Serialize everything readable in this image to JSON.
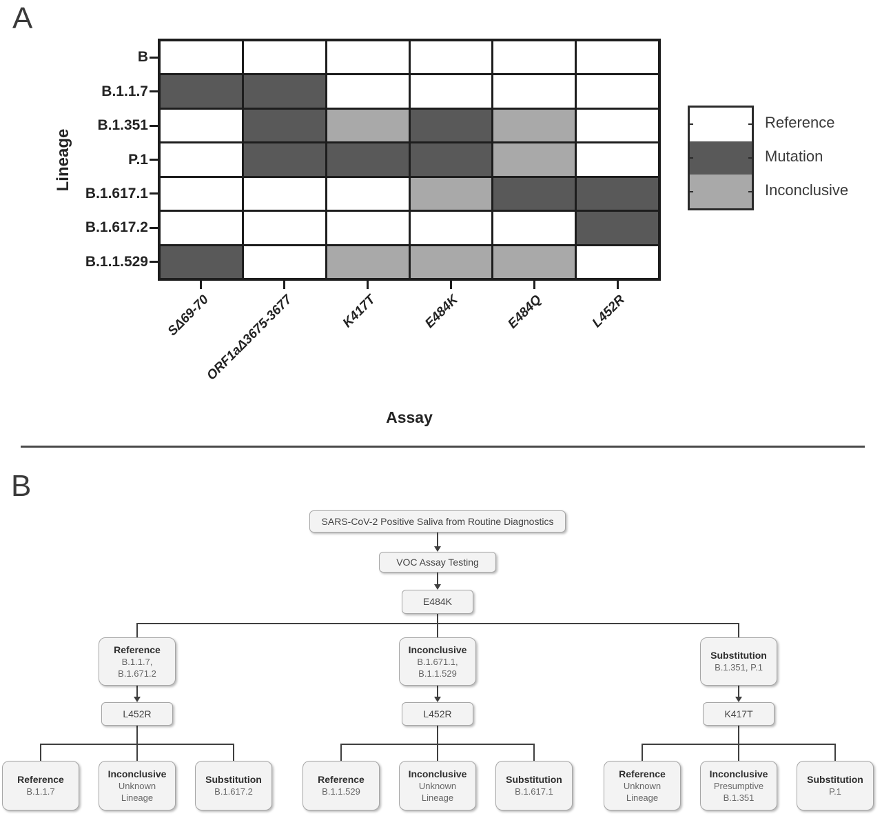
{
  "panelA": {
    "label": "A",
    "ylabel": "Lineage",
    "xlabel": "Assay"
  },
  "chart_data": {
    "type": "heatmap",
    "title": "",
    "xlabel": "Assay",
    "ylabel": "Lineage",
    "rows": [
      "B",
      "B.1.1.7",
      "B.1.351",
      "P.1",
      "B.1.617.1",
      "B.1.617.2",
      "B.1.1.529"
    ],
    "columns": [
      "SΔ69-70",
      "ORF1aΔ3675-3677",
      "K417T",
      "E484K",
      "E484Q",
      "L452R"
    ],
    "cells": [
      [
        "reference",
        "reference",
        "reference",
        "reference",
        "reference",
        "reference"
      ],
      [
        "mutation",
        "mutation",
        "reference",
        "reference",
        "reference",
        "reference"
      ],
      [
        "reference",
        "mutation",
        "inconclusive",
        "mutation",
        "inconclusive",
        "reference"
      ],
      [
        "reference",
        "mutation",
        "mutation",
        "mutation",
        "inconclusive",
        "reference"
      ],
      [
        "reference",
        "reference",
        "reference",
        "inconclusive",
        "mutation",
        "mutation"
      ],
      [
        "reference",
        "reference",
        "reference",
        "reference",
        "reference",
        "mutation"
      ],
      [
        "mutation",
        "reference",
        "inconclusive",
        "inconclusive",
        "inconclusive",
        "reference"
      ]
    ],
    "legend": [
      {
        "label": "Reference",
        "value": "reference",
        "color": "#ffffff"
      },
      {
        "label": "Mutation",
        "value": "mutation",
        "color": "#595959"
      },
      {
        "label": "Inconclusive",
        "value": "inconclusive",
        "color": "#a9a9a9"
      }
    ],
    "legend_position": "right",
    "grid_line_color": "#1d1d1d"
  },
  "panelB": {
    "label": "B",
    "flowchart": {
      "root": "SARS-CoV-2 Positive Saliva from Routine Diagnostics",
      "step2": "VOC Assay Testing",
      "step3": "E484K",
      "branches": [
        {
          "result_title": "Reference",
          "result_lines": "B.1.1.7,\nB.1.671.2",
          "gene": "L452R",
          "leaves": [
            {
              "title": "Reference",
              "lines": "B.1.1.7"
            },
            {
              "title": "Inconclusive",
              "lines": "Unknown\nLineage"
            },
            {
              "title": "Substitution",
              "lines": "B.1.617.2"
            }
          ]
        },
        {
          "result_title": "Inconclusive",
          "result_lines": "B.1.671.1,\nB.1.1.529",
          "gene": "L452R",
          "leaves": [
            {
              "title": "Reference",
              "lines": "B.1.1.529"
            },
            {
              "title": "Inconclusive",
              "lines": "Unknown\nLineage"
            },
            {
              "title": "Substitution",
              "lines": "B.1.617.1"
            }
          ]
        },
        {
          "result_title": "Substitution",
          "result_lines": "B.1.351, P.1",
          "gene": "K417T",
          "leaves": [
            {
              "title": "Reference",
              "lines": "Unknown\nLineage"
            },
            {
              "title": "Inconclusive",
              "lines": "Presumptive\nB.1.351"
            },
            {
              "title": "Substitution",
              "lines": "P.1"
            }
          ]
        }
      ]
    }
  }
}
